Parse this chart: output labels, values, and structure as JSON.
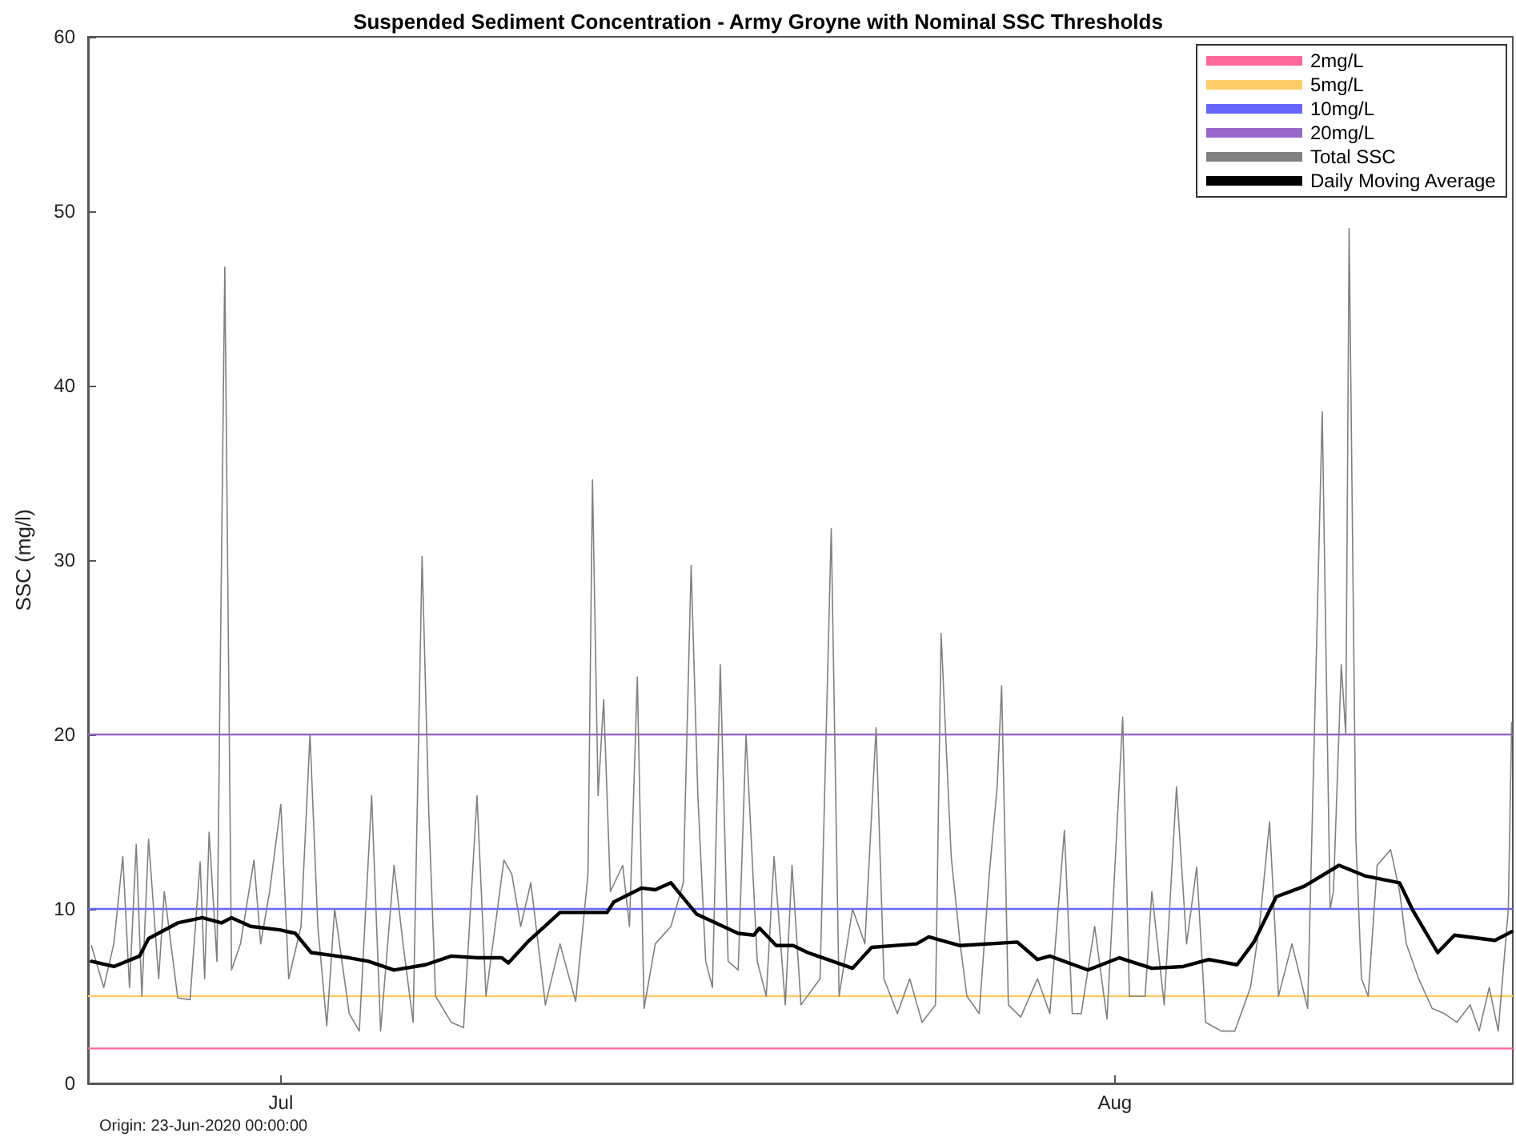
{
  "chart_data": {
    "type": "line",
    "title": "Suspended Sediment Concentration - Army Groyne with Nominal SSC Thresholds",
    "ylabel": "SSC (mg/l)",
    "annotations": [
      "Origin: 23-Jun-2020 00:00:00"
    ],
    "xlim": [
      "2020-06-23T20:00",
      "2020-08-15T19:00"
    ],
    "xticks": [
      {
        "value": "2020-07-01",
        "label": "Jul"
      },
      {
        "value": "2020-08-01",
        "label": "Aug"
      }
    ],
    "ylim": [
      0,
      60
    ],
    "yticks": [
      0,
      10,
      20,
      30,
      40,
      50,
      60
    ],
    "grid": false,
    "legend": "top right",
    "marker": "none",
    "line_style": "solid",
    "ref_lines": [
      {
        "axis": "y",
        "value": 2,
        "label": "2mg/L",
        "color": "#ff6699"
      },
      {
        "axis": "y",
        "value": 5,
        "label": "5mg/L",
        "color": "#ffcc66"
      },
      {
        "axis": "y",
        "value": 10,
        "label": "10mg/L",
        "color": "#6666ff"
      },
      {
        "axis": "y",
        "value": 20,
        "label": "20mg/L",
        "color": "#9966cc"
      }
    ],
    "series": [
      {
        "name": "Total SSC",
        "color": "#808080",
        "x": [
          "2020-06-23T23:00",
          "2020-06-24T10:00",
          "2020-06-24T19:00",
          "2020-06-25T03:00",
          "2020-06-25T09:00",
          "2020-06-25T15:00",
          "2020-06-25T20:00",
          "2020-06-26T02:00",
          "2020-06-26T11:00",
          "2020-06-26T16:00",
          "2020-06-27T04:00",
          "2020-06-27T15:00",
          "2020-06-28T00:00",
          "2020-06-28T04:00",
          "2020-06-28T08:00",
          "2020-06-28T15:00",
          "2020-06-28T22:00",
          "2020-06-29T04:00",
          "2020-06-29T12:00",
          "2020-06-30T00:00",
          "2020-06-30T06:00",
          "2020-06-30T14:00",
          "2020-07-01T00:00",
          "2020-07-01T07:00",
          "2020-07-01T18:00",
          "2020-07-02T02:00",
          "2020-07-02T09:00",
          "2020-07-02T17:00",
          "2020-07-03T00:00",
          "2020-07-03T13:00",
          "2020-07-03T22:00",
          "2020-07-04T09:00",
          "2020-07-04T17:00",
          "2020-07-05T05:00",
          "2020-07-05T13:00",
          "2020-07-05T22:00",
          "2020-07-06T06:00",
          "2020-07-06T12:00",
          "2020-07-06T18:00",
          "2020-07-07T08:00",
          "2020-07-07T19:00",
          "2020-07-08T07:00",
          "2020-07-08T15:00",
          "2020-07-09T07:00",
          "2020-07-09T14:00",
          "2020-07-09T22:00",
          "2020-07-10T07:00",
          "2020-07-10T20:00",
          "2020-07-11T09:00",
          "2020-07-11T23:00",
          "2020-07-12T10:00",
          "2020-07-12T14:00",
          "2020-07-12T19:00",
          "2020-07-13T00:00",
          "2020-07-13T06:00",
          "2020-07-13T17:00",
          "2020-07-13T23:00",
          "2020-07-14T06:00",
          "2020-07-14T12:00",
          "2020-07-14T22:00",
          "2020-07-15T12:00",
          "2020-07-15T23:00",
          "2020-07-16T06:00",
          "2020-07-16T12:00",
          "2020-07-16T19:00",
          "2020-07-17T01:00",
          "2020-07-17T08:00",
          "2020-07-17T15:00",
          "2020-07-18T00:00",
          "2020-07-18T07:00",
          "2020-07-18T17:00",
          "2020-07-19T01:00",
          "2020-07-19T08:00",
          "2020-07-19T18:00",
          "2020-07-20T00:00",
          "2020-07-20T08:00",
          "2020-07-21T01:00",
          "2020-07-21T11:00",
          "2020-07-21T18:00",
          "2020-07-22T06:00",
          "2020-07-22T17:00",
          "2020-07-23T03:00",
          "2020-07-23T10:00",
          "2020-07-23T22:00",
          "2020-07-24T09:00",
          "2020-07-24T20:00",
          "2020-07-25T08:00",
          "2020-07-25T13:00",
          "2020-07-25T22:00",
          "2020-07-26T06:00",
          "2020-07-26T12:00",
          "2020-07-26T23:00",
          "2020-07-27T08:00",
          "2020-07-27T15:00",
          "2020-07-27T19:00",
          "2020-07-28T01:00",
          "2020-07-28T12:00",
          "2020-07-29T03:00",
          "2020-07-29T14:00",
          "2020-07-30T03:00",
          "2020-07-30T10:00",
          "2020-07-30T18:00",
          "2020-07-31T06:00",
          "2020-07-31T17:00",
          "2020-08-01T07:00",
          "2020-08-01T13:00",
          "2020-08-02T03:00",
          "2020-08-02T09:00",
          "2020-08-02T20:00",
          "2020-08-03T07:00",
          "2020-08-03T16:00",
          "2020-08-04T01:00",
          "2020-08-04T09:00",
          "2020-08-04T23:00",
          "2020-08-05T11:00",
          "2020-08-06T01:00",
          "2020-08-06T09:00",
          "2020-08-06T18:00",
          "2020-08-07T02:00",
          "2020-08-07T14:00",
          "2020-08-08T04:00",
          "2020-08-08T17:00",
          "2020-08-09T00:00",
          "2020-08-09T03:00",
          "2020-08-09T10:00",
          "2020-08-09T14:00",
          "2020-08-09T17:00",
          "2020-08-09T23:00",
          "2020-08-10T04:00",
          "2020-08-10T10:00",
          "2020-08-10T18:00",
          "2020-08-11T06:00",
          "2020-08-11T14:00",
          "2020-08-11T20:00",
          "2020-08-12T07:00",
          "2020-08-12T19:00",
          "2020-08-13T06:00",
          "2020-08-13T17:00",
          "2020-08-14T05:00",
          "2020-08-14T13:00",
          "2020-08-14T22:00",
          "2020-08-15T06:00",
          "2020-08-15T15:00",
          "2020-08-15T18:00"
        ],
        "values": [
          7.9,
          5.5,
          8,
          13,
          5.5,
          13.7,
          5,
          14,
          6,
          11,
          4.9,
          4.8,
          12.7,
          6,
          14.4,
          7,
          46.8,
          6.5,
          8,
          12.8,
          8,
          11,
          16,
          6,
          9,
          20,
          9,
          3.3,
          10,
          4,
          3,
          16.5,
          3,
          12.5,
          8,
          3.5,
          30.2,
          15.5,
          5,
          3.5,
          3.2,
          16.5,
          5,
          12.8,
          12,
          9,
          11.5,
          4.5,
          8,
          4.7,
          12,
          34.6,
          16.5,
          22,
          11,
          12.5,
          9,
          23.3,
          4.3,
          8,
          9,
          11.5,
          29.7,
          16.5,
          7,
          5.5,
          24,
          7,
          6.5,
          20,
          7,
          5,
          13,
          4.5,
          12.5,
          4.5,
          6,
          31.8,
          5,
          10,
          8,
          20.4,
          6,
          4,
          6,
          3.5,
          4.5,
          25.8,
          13,
          8,
          5,
          4,
          12,
          17,
          22.8,
          4.5,
          3.8,
          6,
          4,
          14.5,
          4,
          4,
          9,
          3.7,
          21,
          5,
          5,
          11,
          4.5,
          17,
          8,
          12.4,
          3.5,
          3,
          3,
          5.5,
          9,
          15,
          5,
          8,
          4.3,
          38.5,
          10,
          11,
          24,
          20,
          49,
          14,
          6,
          5,
          12.5,
          13.4,
          11,
          8,
          6,
          4.3,
          4,
          3.5,
          4.5,
          3,
          5.5,
          3,
          10,
          20.7
        ]
      },
      {
        "name": "Daily Moving Average",
        "color": "#000000",
        "x": [
          "2020-06-23T23:00",
          "2020-06-24T19:00",
          "2020-06-25T18:00",
          "2020-06-26T02:00",
          "2020-06-27T04:00",
          "2020-06-28T02:00",
          "2020-06-28T19:00",
          "2020-06-29T04:00",
          "2020-06-29T21:00",
          "2020-06-30T23:00",
          "2020-07-01T13:00",
          "2020-07-02T03:00",
          "2020-07-03T02:00",
          "2020-07-03T13:00",
          "2020-07-04T06:00",
          "2020-07-05T05:00",
          "2020-07-06T09:00",
          "2020-07-07T08:00",
          "2020-07-08T07:00",
          "2020-07-09T05:00",
          "2020-07-09T11:00",
          "2020-07-10T04:00",
          "2020-07-11T09:00",
          "2020-07-13T03:00",
          "2020-07-13T09:00",
          "2020-07-14T10:00",
          "2020-07-14T22:00",
          "2020-07-15T12:00",
          "2020-07-16T11:00",
          "2020-07-18T00:00",
          "2020-07-18T14:00",
          "2020-07-18T19:00",
          "2020-07-19T10:00",
          "2020-07-20T01:00",
          "2020-07-20T14:00",
          "2020-07-22T06:00",
          "2020-07-22T23:00",
          "2020-07-24T15:00",
          "2020-07-25T02:00",
          "2020-07-26T06:00",
          "2020-07-28T09:00",
          "2020-07-29T03:00",
          "2020-07-29T14:00",
          "2020-07-31T00:00",
          "2020-08-01T04:00",
          "2020-08-02T09:00",
          "2020-08-03T13:00",
          "2020-08-04T12:00",
          "2020-08-05T13:00",
          "2020-08-06T04:00",
          "2020-08-07T00:00",
          "2020-08-08T01:00",
          "2020-08-09T08:00",
          "2020-08-10T07:00",
          "2020-08-11T14:00",
          "2020-08-12T02:00",
          "2020-08-13T00:00",
          "2020-08-13T15:00",
          "2020-08-15T03:00",
          "2020-08-15T18:00"
        ],
        "values": [
          7.0,
          6.7,
          7.3,
          8.3,
          9.2,
          9.5,
          9.2,
          9.5,
          9.0,
          8.8,
          8.6,
          7.5,
          7.3,
          7.2,
          7.0,
          6.5,
          6.8,
          7.3,
          7.2,
          7.2,
          6.9,
          8.1,
          9.8,
          9.8,
          10.4,
          11.2,
          11.1,
          11.5,
          9.7,
          8.6,
          8.5,
          8.9,
          7.9,
          7.9,
          7.5,
          6.6,
          7.8,
          8.0,
          8.4,
          7.9,
          8.1,
          7.1,
          7.3,
          6.5,
          7.2,
          6.6,
          6.7,
          7.1,
          6.8,
          8.1,
          10.7,
          11.3,
          12.5,
          11.9,
          11.5,
          9.9,
          7.5,
          8.5,
          8.2,
          8.7
        ]
      }
    ]
  }
}
